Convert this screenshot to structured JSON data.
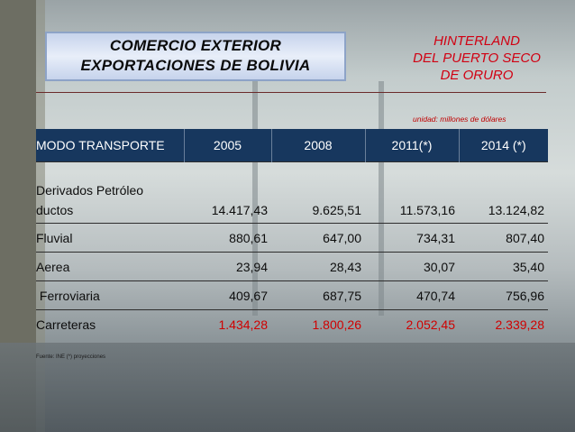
{
  "title": {
    "line1": "COMERCIO EXTERIOR",
    "line2": "EXPORTACIONES DE BOLIVIA"
  },
  "subtitle": [
    "HINTERLAND",
    "DEL PUERTO SECO",
    "DE ORURO"
  ],
  "unit_note": "unidad: millones de dólares",
  "table": {
    "headers": [
      "MODO TRANSPORTE",
      "2005",
      "2008",
      "2011(*)",
      "2014 (*)"
    ],
    "rows": [
      {
        "label_line1": "Derivados Petróleo",
        "label_line2": "ductos",
        "values": [
          "14.417,43",
          "9.625,51",
          "11.573,16",
          "13.124,82"
        ]
      },
      {
        "label": "Fluvial",
        "values": [
          "880,61",
          "647,00",
          "734,31",
          "807,40"
        ]
      },
      {
        "label": "Aerea",
        "values": [
          "23,94",
          "28,43",
          "30,07",
          "35,40"
        ]
      },
      {
        "label": " Ferroviaria",
        "values": [
          "409,67",
          "687,75",
          "470,74",
          "756,96"
        ]
      },
      {
        "label": "Carreteras",
        "values": [
          "1.434,28",
          "1.800,26",
          "2.052,45",
          "2.339,28"
        ]
      }
    ]
  },
  "source": "Fuente: INE (*) proyecciones",
  "colors": {
    "header_bg": "#17375e",
    "highlight_red": "#d00000",
    "subtitle_red": "#d10012"
  }
}
